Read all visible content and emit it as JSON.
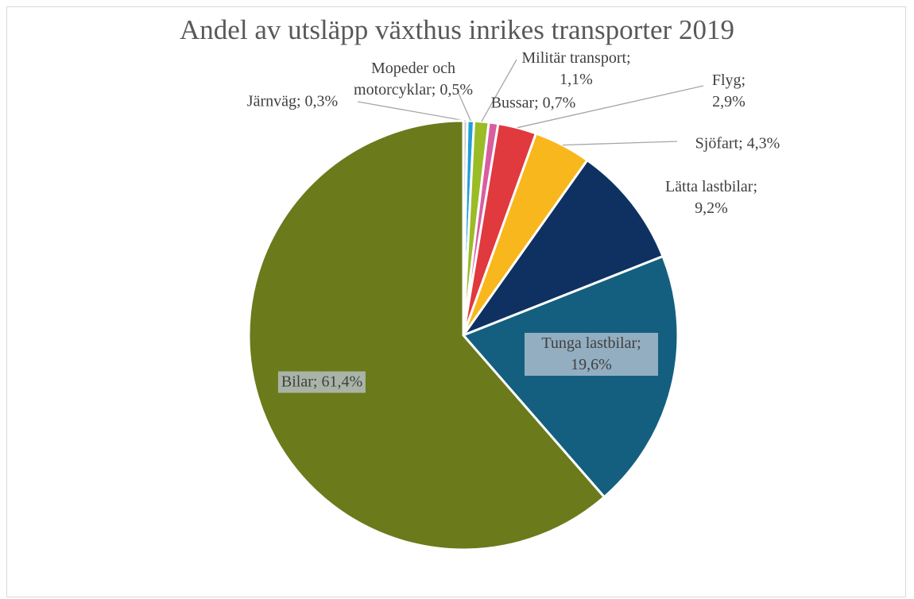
{
  "chart_data": {
    "type": "pie",
    "title": "Andel av utsläpp växthus inrikes transporter 2019",
    "categories": [
      "Järnväg",
      "Mopeder och motorcyklar",
      "Militär transport",
      "Bussar",
      "Flyg",
      "Sjöfart",
      "Lätta lastbilar",
      "Tunga lastbilar",
      "Bilar"
    ],
    "values": [
      0.3,
      0.5,
      1.1,
      0.7,
      2.9,
      4.3,
      9.2,
      19.6,
      61.4
    ],
    "value_labels": [
      "Järnväg; 0,3%",
      "Mopeder och motorcyklar; 0,5%",
      "Militär transport; 1,1%",
      "Bussar; 0,7%",
      "Flyg; 2,9%",
      "Sjöfart; 4,3%",
      "Lätta lastbilar; 9,2%",
      "Tunga lastbilar; 19,6%",
      "Bilar; 61,4%"
    ],
    "colors": [
      "#c9c9c9",
      "#1f9fd8",
      "#9bbb27",
      "#d85ea0",
      "#e0393e",
      "#f8b71c",
      "#0e3161",
      "#145f7f",
      "#6b7a1b"
    ]
  }
}
